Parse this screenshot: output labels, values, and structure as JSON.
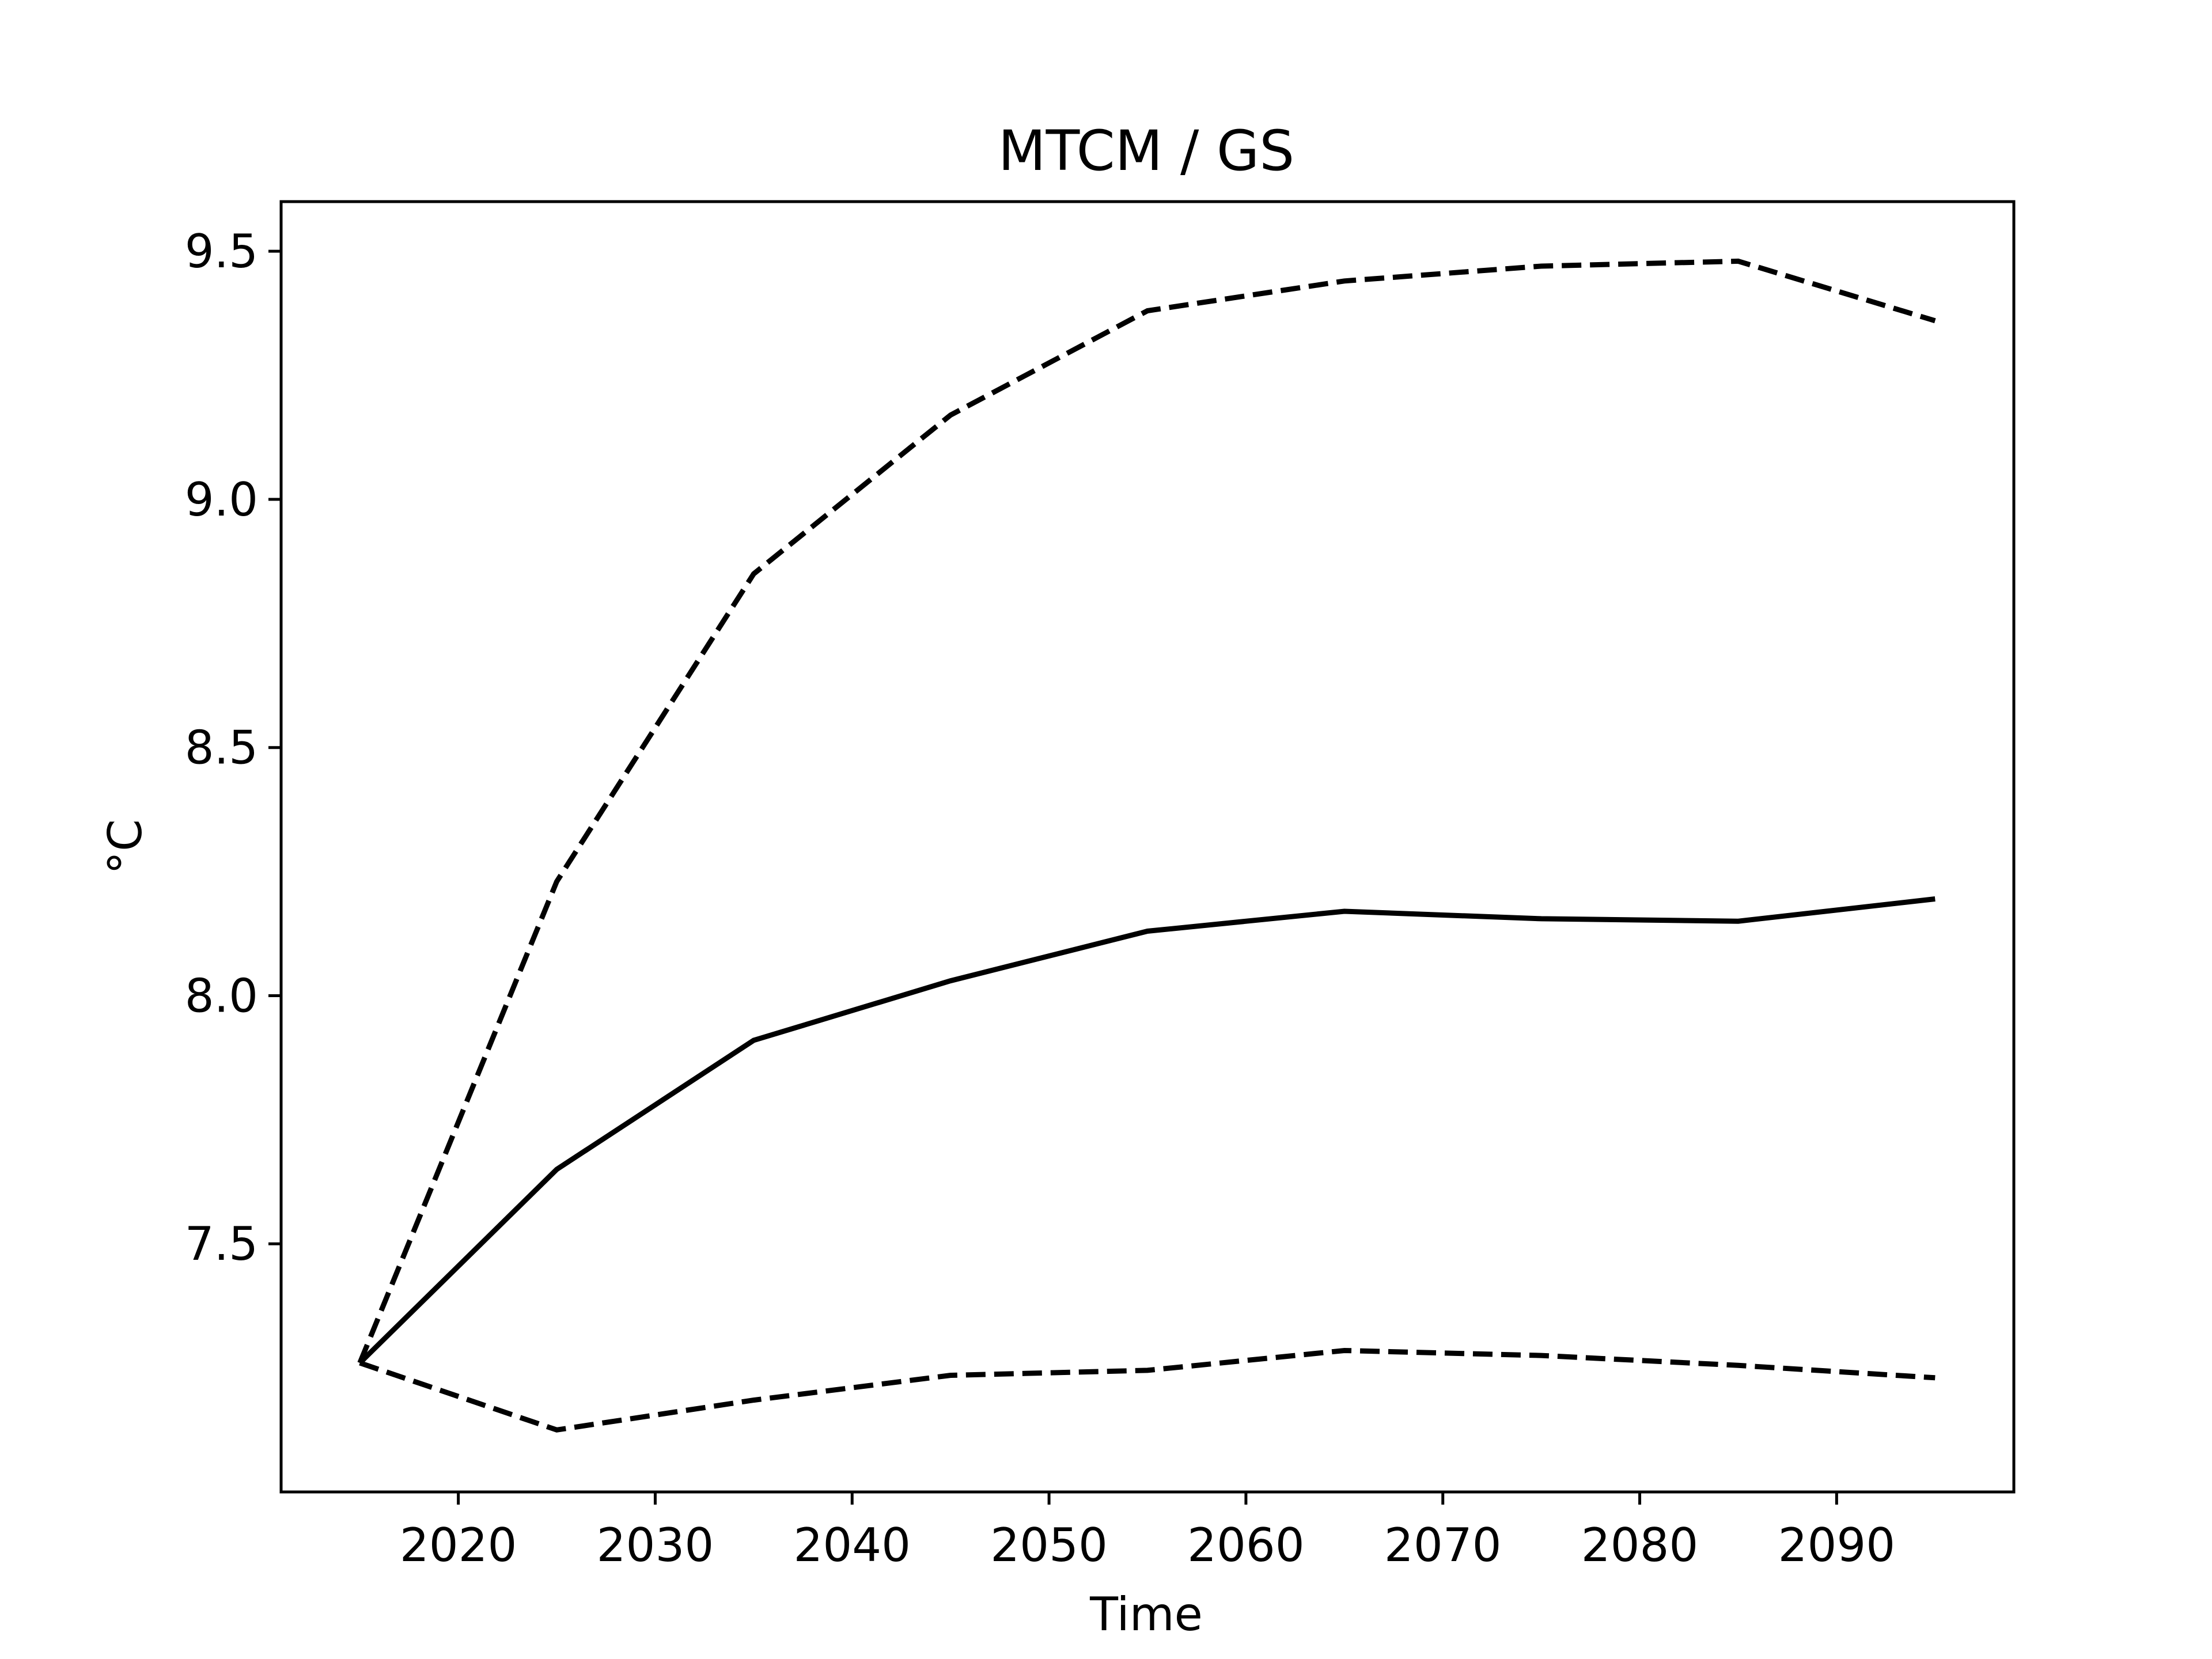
{
  "chart_data": {
    "type": "line",
    "title": "MTCM / GS",
    "xlabel": "Time",
    "ylabel": "°C",
    "xlim": [
      2011,
      2099
    ],
    "ylim": [
      7.0,
      9.6
    ],
    "x": [
      2015,
      2025,
      2035,
      2045,
      2055,
      2065,
      2075,
      2085,
      2095
    ],
    "xticks": [
      "2020",
      "2030",
      "2040",
      "2050",
      "2060",
      "2070",
      "2080",
      "2090"
    ],
    "yticks": [
      "7.5",
      "8.0",
      "8.5",
      "9.0",
      "9.5"
    ],
    "grid": false,
    "series": [
      {
        "style": "dashed",
        "color": "#000000",
        "values": [
          7.26,
          8.23,
          8.85,
          9.17,
          9.38,
          9.44,
          9.47,
          9.48,
          9.36
        ]
      },
      {
        "style": "solid",
        "color": "#000000",
        "values": [
          7.26,
          7.65,
          7.91,
          8.03,
          8.13,
          8.17,
          8.155,
          8.15,
          8.195
        ]
      },
      {
        "style": "dashed",
        "color": "#000000",
        "values": [
          7.26,
          7.125,
          7.185,
          7.235,
          7.245,
          7.285,
          7.275,
          7.255,
          7.23
        ]
      }
    ]
  }
}
